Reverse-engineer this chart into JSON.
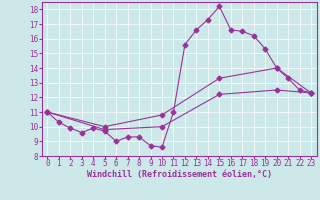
{
  "xlabel": "Windchill (Refroidissement éolien,°C)",
  "ylabel": "",
  "xlim": [
    -0.5,
    23.5
  ],
  "ylim": [
    8,
    18.5
  ],
  "xticks": [
    0,
    1,
    2,
    3,
    4,
    5,
    6,
    7,
    8,
    9,
    10,
    11,
    12,
    13,
    14,
    15,
    16,
    17,
    18,
    19,
    20,
    21,
    22,
    23
  ],
  "yticks": [
    8,
    9,
    10,
    11,
    12,
    13,
    14,
    15,
    16,
    17,
    18
  ],
  "bg_color": "#cce8e8",
  "line_color": "#993399",
  "line1_x": [
    0,
    1,
    2,
    3,
    4,
    5,
    6,
    7,
    8,
    9,
    10,
    11,
    12,
    13,
    14,
    15,
    16,
    17,
    18,
    19,
    20,
    21,
    22,
    23
  ],
  "line1_y": [
    11.0,
    10.3,
    9.9,
    9.6,
    9.9,
    9.7,
    9.0,
    9.3,
    9.3,
    8.7,
    8.6,
    11.0,
    15.6,
    16.6,
    17.3,
    18.2,
    16.6,
    16.5,
    16.2,
    15.3,
    14.0,
    13.3,
    12.5,
    12.3
  ],
  "line2_x": [
    0,
    5,
    10,
    15,
    20,
    23
  ],
  "line2_y": [
    11.0,
    10.0,
    10.8,
    13.3,
    14.0,
    12.3
  ],
  "line3_x": [
    0,
    5,
    10,
    15,
    20,
    23
  ],
  "line3_y": [
    11.0,
    9.8,
    10.0,
    12.2,
    12.5,
    12.3
  ],
  "marker": "D",
  "marker_size": 2.5,
  "tick_fontsize": 5.5,
  "xlabel_fontsize": 6.0
}
